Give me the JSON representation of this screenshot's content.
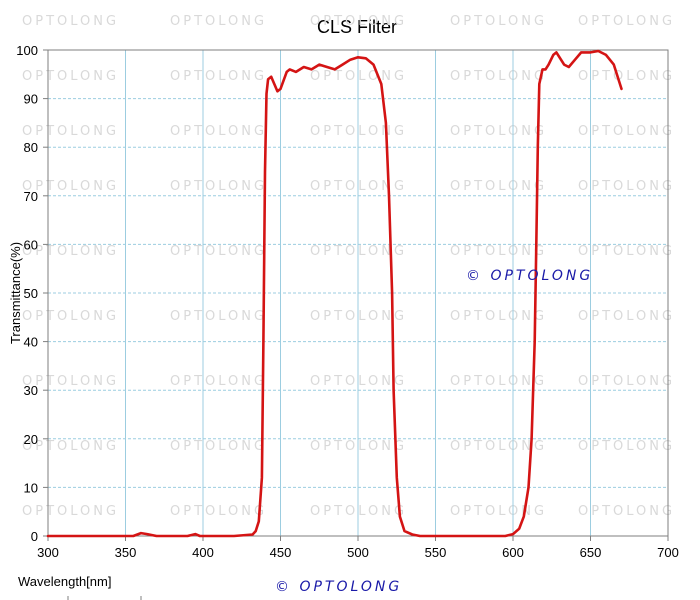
{
  "chart_data": {
    "type": "line",
    "title": "CLS Filter",
    "xlabel": "Wavelength[nm]",
    "ylabel": "Transmittance(%)",
    "xlim": [
      300,
      700
    ],
    "ylim": [
      0,
      100
    ],
    "x_ticks": [
      300,
      350,
      400,
      450,
      500,
      550,
      600,
      650,
      700
    ],
    "y_ticks": [
      0,
      10,
      20,
      30,
      40,
      50,
      60,
      70,
      80,
      90,
      100
    ],
    "grid": true,
    "series": [
      {
        "color": "#d41414",
        "points": [
          [
            300,
            0
          ],
          [
            340,
            0
          ],
          [
            355,
            0
          ],
          [
            360,
            0.6
          ],
          [
            364,
            0.4
          ],
          [
            370,
            0
          ],
          [
            390,
            0
          ],
          [
            395,
            0.4
          ],
          [
            398,
            0
          ],
          [
            420,
            0
          ],
          [
            432,
            0.3
          ],
          [
            434,
            1
          ],
          [
            436,
            3
          ],
          [
            438,
            12
          ],
          [
            439,
            40
          ],
          [
            440,
            75
          ],
          [
            441,
            91
          ],
          [
            442,
            94
          ],
          [
            444,
            94.5
          ],
          [
            446,
            93
          ],
          [
            448,
            91.5
          ],
          [
            450,
            92
          ],
          [
            454,
            95.5
          ],
          [
            456,
            96
          ],
          [
            460,
            95.5
          ],
          [
            465,
            96.5
          ],
          [
            470,
            96
          ],
          [
            475,
            97
          ],
          [
            480,
            96.5
          ],
          [
            485,
            96
          ],
          [
            490,
            97
          ],
          [
            495,
            98
          ],
          [
            500,
            98.5
          ],
          [
            505,
            98.3
          ],
          [
            510,
            97
          ],
          [
            515,
            93
          ],
          [
            518,
            85
          ],
          [
            520,
            70
          ],
          [
            522,
            50
          ],
          [
            523,
            30
          ],
          [
            525,
            12
          ],
          [
            527,
            4
          ],
          [
            530,
            1
          ],
          [
            535,
            0.3
          ],
          [
            540,
            0
          ],
          [
            580,
            0
          ],
          [
            595,
            0
          ],
          [
            600,
            0.4
          ],
          [
            604,
            1.5
          ],
          [
            607,
            4
          ],
          [
            610,
            10
          ],
          [
            612,
            20
          ],
          [
            614,
            40
          ],
          [
            615,
            60
          ],
          [
            616,
            80
          ],
          [
            617,
            93
          ],
          [
            619,
            96
          ],
          [
            621,
            96
          ],
          [
            623,
            97
          ],
          [
            626,
            99
          ],
          [
            628,
            99.5
          ],
          [
            630,
            98.5
          ],
          [
            633,
            97
          ],
          [
            636,
            96.5
          ],
          [
            640,
            98
          ],
          [
            644,
            99.5
          ],
          [
            650,
            99.5
          ],
          [
            655,
            99.8
          ],
          [
            660,
            99
          ],
          [
            665,
            97
          ],
          [
            670,
            92
          ]
        ]
      }
    ],
    "annotations": [
      "© OPTOLONG",
      "© OPTOLONG",
      "OPTOLONG"
    ]
  },
  "colors": {
    "curve": "#d41414",
    "grid": "#9ccde0",
    "brand": "#1a1aa8",
    "watermark": "#d9d9d9"
  }
}
